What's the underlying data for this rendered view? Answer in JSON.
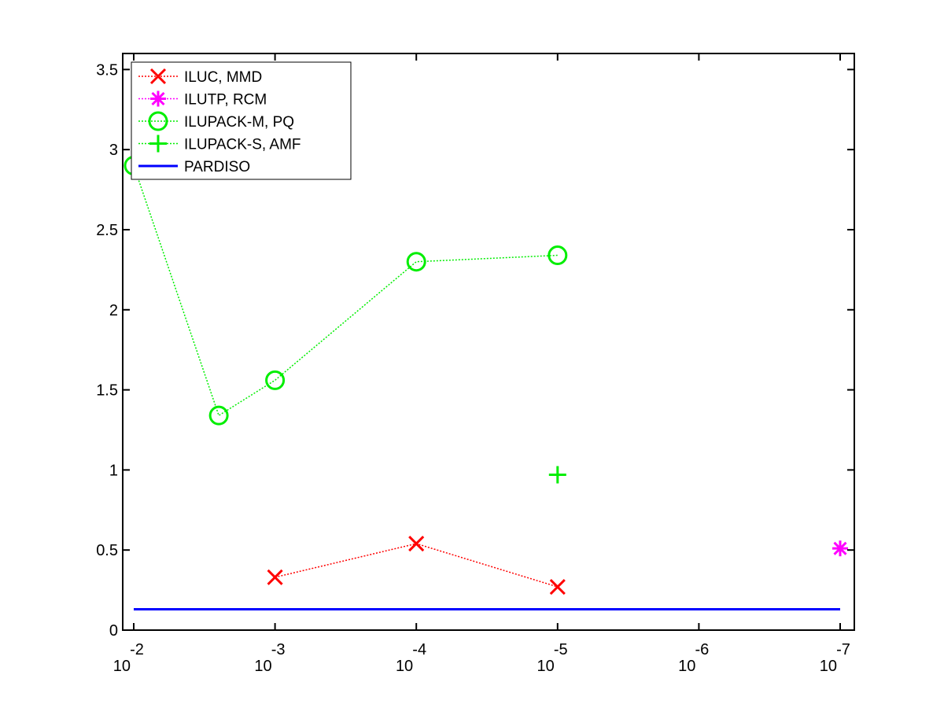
{
  "chart_data": {
    "type": "line",
    "title": "",
    "xlabel": "",
    "ylabel": "",
    "x_scale": "log-reversed",
    "xlim": [
      0.01,
      1e-07
    ],
    "ylim": [
      0,
      3.6
    ],
    "grid": false,
    "legend_position": "top-left",
    "x_ticks": [
      {
        "value": 0.01,
        "base": "10",
        "exp": "-2"
      },
      {
        "value": 0.001,
        "base": "10",
        "exp": "-3"
      },
      {
        "value": 0.0001,
        "base": "10",
        "exp": "-4"
      },
      {
        "value": 1e-05,
        "base": "10",
        "exp": "-5"
      },
      {
        "value": 1e-06,
        "base": "10",
        "exp": "-6"
      },
      {
        "value": 1e-07,
        "base": "10",
        "exp": "-7"
      }
    ],
    "y_ticks": [
      {
        "value": 0,
        "label": "0"
      },
      {
        "value": 0.5,
        "label": "0.5"
      },
      {
        "value": 1,
        "label": "1"
      },
      {
        "value": 1.5,
        "label": "1.5"
      },
      {
        "value": 2,
        "label": "2"
      },
      {
        "value": 2.5,
        "label": "2.5"
      },
      {
        "value": 3,
        "label": "3"
      },
      {
        "value": 3.5,
        "label": "3.5"
      }
    ],
    "series": [
      {
        "name": "ILUC, MMD",
        "color": "#ff0000",
        "marker": "x",
        "line": "dotted",
        "points": [
          [
            0.001,
            0.33
          ],
          [
            0.0001,
            0.54
          ],
          [
            1e-05,
            0.27
          ]
        ]
      },
      {
        "name": "ILUTP, RCM",
        "color": "#ff00ff",
        "marker": "asterisk",
        "line": "dotted",
        "points": [
          [
            1e-07,
            0.51
          ]
        ]
      },
      {
        "name": "ILUPACK-M, PQ",
        "color": "#00ee00",
        "marker": "circle",
        "line": "dotted",
        "points": [
          [
            0.01,
            2.9
          ],
          [
            0.0025,
            1.34
          ],
          [
            0.001,
            1.56
          ],
          [
            0.0001,
            2.3
          ],
          [
            1e-05,
            2.34
          ]
        ]
      },
      {
        "name": "ILUPACK-S, AMF",
        "color": "#00ee00",
        "marker": "plus",
        "line": "dotted",
        "points": [
          [
            1e-05,
            0.97
          ]
        ]
      },
      {
        "name": "PARDISO",
        "color": "#0000ff",
        "marker": "none",
        "line": "solid",
        "points": [
          [
            0.01,
            0.13
          ],
          [
            1e-07,
            0.13
          ]
        ]
      }
    ]
  }
}
